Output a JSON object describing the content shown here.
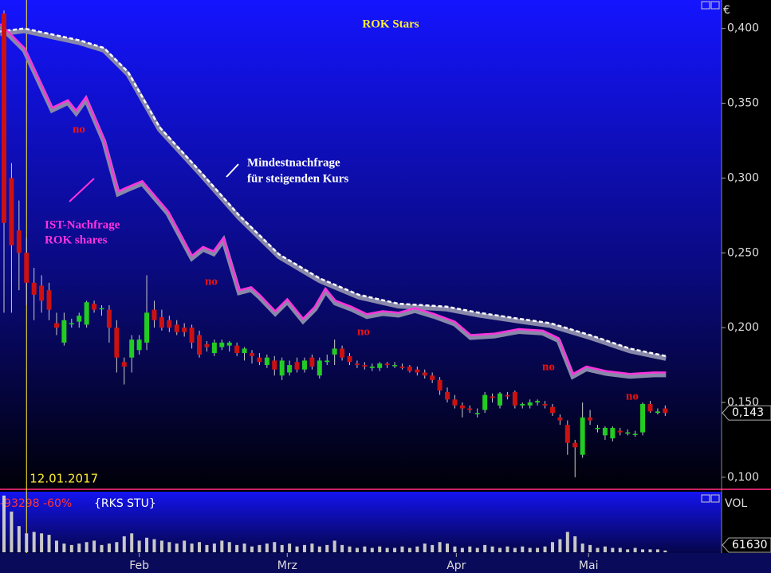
{
  "chart_data": [
    {
      "type": "candlestick",
      "title": "ROK Stars",
      "currency": "€",
      "xlim": [
        -0.53,
        95.5
      ],
      "ylim": [
        0.093,
        0.419
      ],
      "yticks": [
        {
          "value": 0.1,
          "label": "0,100"
        },
        {
          "value": 0.15,
          "label": "0,150"
        },
        {
          "value": 0.2,
          "label": "0,200"
        },
        {
          "value": 0.25,
          "label": "0,250"
        },
        {
          "value": 0.3,
          "label": "0,300"
        },
        {
          "value": 0.35,
          "label": "0,350"
        },
        {
          "value": 0.4,
          "label": "0,400"
        }
      ],
      "up_color": "#22cc22",
      "down_color": "#cc1111",
      "x": [
        0,
        1,
        2,
        3,
        4,
        5,
        6,
        7,
        8,
        9,
        10,
        11,
        12,
        13,
        14,
        15,
        16,
        17,
        18,
        19,
        20,
        21,
        22,
        23,
        24,
        25,
        26,
        27,
        28,
        29,
        30,
        31,
        32,
        33,
        34,
        35,
        36,
        37,
        38,
        39,
        40,
        41,
        42,
        43,
        44,
        45,
        46,
        47,
        48,
        49,
        50,
        51,
        52,
        53,
        54,
        55,
        56,
        57,
        58,
        59,
        60,
        61,
        62,
        63,
        64,
        65,
        66,
        67,
        68,
        69,
        70,
        71,
        72,
        73,
        74,
        75,
        76,
        77,
        78,
        79,
        80,
        81,
        82,
        83,
        84,
        85,
        86,
        87,
        88
      ],
      "open": [
        0.41,
        0.3,
        0.265,
        0.25,
        0.23,
        0.228,
        0.225,
        0.203,
        0.19,
        0.203,
        0.204,
        0.202,
        0.216,
        0.213,
        0.212,
        0.2,
        0.177,
        0.18,
        0.185,
        0.19,
        0.212,
        0.207,
        0.205,
        0.202,
        0.2,
        0.2,
        0.195,
        0.189,
        0.183,
        0.187,
        0.188,
        0.188,
        0.183,
        0.183,
        0.18,
        0.175,
        0.178,
        0.168,
        0.17,
        0.177,
        0.172,
        0.18,
        0.168,
        0.177,
        0.182,
        0.186,
        0.181,
        0.176,
        0.175,
        0.173,
        0.173,
        0.176,
        0.175,
        0.174,
        0.174,
        0.172,
        0.17,
        0.168,
        0.165,
        0.157,
        0.152,
        0.148,
        0.146,
        0.143,
        0.145,
        0.154,
        0.148,
        0.155,
        0.157,
        0.148,
        0.148,
        0.15,
        0.149,
        0.147,
        0.14,
        0.135,
        0.123,
        0.115,
        0.14,
        0.133,
        0.128,
        0.126,
        0.131,
        0.13,
        0.129,
        0.13,
        0.149,
        0.143,
        0.146
      ],
      "high": [
        0.412,
        0.31,
        0.285,
        0.26,
        0.24,
        0.235,
        0.23,
        0.21,
        0.21,
        0.206,
        0.21,
        0.218,
        0.218,
        0.215,
        0.215,
        0.205,
        0.18,
        0.195,
        0.195,
        0.235,
        0.218,
        0.212,
        0.208,
        0.205,
        0.203,
        0.202,
        0.198,
        0.191,
        0.192,
        0.192,
        0.191,
        0.19,
        0.187,
        0.185,
        0.183,
        0.182,
        0.181,
        0.18,
        0.178,
        0.18,
        0.18,
        0.182,
        0.18,
        0.182,
        0.192,
        0.188,
        0.183,
        0.178,
        0.177,
        0.176,
        0.177,
        0.177,
        0.177,
        0.176,
        0.175,
        0.174,
        0.172,
        0.17,
        0.167,
        0.16,
        0.155,
        0.15,
        0.148,
        0.146,
        0.157,
        0.156,
        0.157,
        0.157,
        0.158,
        0.15,
        0.152,
        0.152,
        0.151,
        0.149,
        0.142,
        0.138,
        0.125,
        0.15,
        0.145,
        0.135,
        0.134,
        0.134,
        0.133,
        0.132,
        0.131,
        0.15,
        0.151,
        0.146,
        0.148
      ],
      "low": [
        0.21,
        0.21,
        0.225,
        0.215,
        0.205,
        0.21,
        0.205,
        0.195,
        0.188,
        0.2,
        0.2,
        0.2,
        0.21,
        0.208,
        0.19,
        0.17,
        0.162,
        0.17,
        0.182,
        0.185,
        0.2,
        0.198,
        0.197,
        0.195,
        0.194,
        0.186,
        0.18,
        0.184,
        0.181,
        0.185,
        0.184,
        0.181,
        0.178,
        0.176,
        0.175,
        0.173,
        0.168,
        0.165,
        0.168,
        0.17,
        0.17,
        0.172,
        0.166,
        0.175,
        0.175,
        0.178,
        0.175,
        0.173,
        0.172,
        0.171,
        0.171,
        0.173,
        0.173,
        0.172,
        0.17,
        0.168,
        0.166,
        0.163,
        0.155,
        0.15,
        0.146,
        0.14,
        0.143,
        0.14,
        0.143,
        0.15,
        0.146,
        0.152,
        0.146,
        0.146,
        0.146,
        0.148,
        0.146,
        0.141,
        0.135,
        0.115,
        0.1,
        0.113,
        0.135,
        0.13,
        0.125,
        0.124,
        0.128,
        0.128,
        0.127,
        0.128,
        0.143,
        0.142,
        0.141
      ],
      "close": [
        0.27,
        0.255,
        0.25,
        0.23,
        0.222,
        0.218,
        0.212,
        0.2,
        0.205,
        0.203,
        0.208,
        0.217,
        0.212,
        0.213,
        0.2,
        0.18,
        0.174,
        0.192,
        0.192,
        0.21,
        0.205,
        0.2,
        0.2,
        0.197,
        0.197,
        0.19,
        0.182,
        0.187,
        0.19,
        0.19,
        0.19,
        0.183,
        0.186,
        0.181,
        0.177,
        0.18,
        0.172,
        0.178,
        0.175,
        0.172,
        0.178,
        0.174,
        0.178,
        0.178,
        0.186,
        0.18,
        0.177,
        0.175,
        0.174,
        0.174,
        0.176,
        0.175,
        0.175,
        0.173,
        0.171,
        0.17,
        0.168,
        0.165,
        0.158,
        0.152,
        0.148,
        0.146,
        0.145,
        0.143,
        0.155,
        0.153,
        0.156,
        0.154,
        0.148,
        0.149,
        0.15,
        0.151,
        0.148,
        0.143,
        0.138,
        0.123,
        0.12,
        0.14,
        0.138,
        0.133,
        0.133,
        0.133,
        0.13,
        0.13,
        0.129,
        0.149,
        0.144,
        0.144,
        0.143
      ],
      "last_price_label": "0,143",
      "lines": [
        {
          "name": "Mindestnachfrage für steigenden Kurs",
          "color": "#ffffff",
          "style": "dashed",
          "x": [
            -0.5,
            2.7,
            10.1,
            13.3,
            16.5,
            20.7,
            26.0,
            31.3,
            36.6,
            42.0,
            47.2,
            52.5,
            58.9,
            63.2,
            68.5,
            72.7,
            78.0,
            83.3,
            88.1
          ],
          "values": [
            0.398,
            0.4,
            0.392,
            0.387,
            0.371,
            0.334,
            0.305,
            0.275,
            0.249,
            0.233,
            0.222,
            0.216,
            0.214,
            0.21,
            0.206,
            0.203,
            0.195,
            0.186,
            0.181
          ]
        },
        {
          "name": "IST-Nachfrage ROK shares",
          "color": "#ff33dd",
          "style": "solid",
          "x": [
            -0.5,
            2.7,
            6.4,
            8.5,
            9.6,
            10.9,
            13.3,
            15.2,
            16.5,
            18.4,
            21.8,
            25.0,
            26.5,
            27.9,
            29.2,
            31.3,
            32.9,
            34.0,
            36.1,
            37.7,
            39.8,
            41.4,
            42.8,
            44.1,
            46.2,
            48.3,
            50.4,
            52.5,
            54.7,
            57.3,
            60.0,
            62.1,
            65.3,
            68.5,
            71.7,
            73.8,
            75.7,
            77.5,
            80.1,
            83.3,
            86.5,
            88.1
          ],
          "values": [
            0.403,
            0.387,
            0.347,
            0.352,
            0.345,
            0.354,
            0.326,
            0.291,
            0.294,
            0.298,
            0.278,
            0.248,
            0.254,
            0.251,
            0.26,
            0.225,
            0.227,
            0.222,
            0.211,
            0.219,
            0.206,
            0.214,
            0.226,
            0.218,
            0.214,
            0.209,
            0.211,
            0.21,
            0.213,
            0.209,
            0.204,
            0.195,
            0.196,
            0.199,
            0.198,
            0.193,
            0.169,
            0.174,
            0.171,
            0.169,
            0.17,
            0.17
          ]
        }
      ],
      "marker_line": {
        "x": 3,
        "label": "12.01.2017"
      },
      "annotations": [
        {
          "text": "Mindestnachfrage",
          "color": "#ffffff"
        },
        {
          "text": "für steigenden Kurs",
          "color": "#ffffff"
        },
        {
          "text": "IST-Nachfrage",
          "color": "#ff33dd"
        },
        {
          "text": "ROK shares",
          "color": "#ff33dd"
        },
        {
          "text": "no",
          "color": "#ee1111"
        },
        {
          "text": "no",
          "color": "#ee1111"
        },
        {
          "text": "no",
          "color": "#ee1111"
        },
        {
          "text": "no",
          "color": "#ee1111"
        },
        {
          "text": "no",
          "color": "#ee1111"
        }
      ]
    },
    {
      "type": "bar",
      "title": "VOL",
      "subtitle": "-93298 -60%",
      "symbol": "{RKS STU}",
      "color": "#c8c8c8",
      "xlim": [
        -0.53,
        95.5
      ],
      "ylim": [
        0,
        2000000
      ],
      "xticks": [
        {
          "value": 18.0,
          "label": "Feb"
        },
        {
          "value": 37.7,
          "label": "Mrz"
        },
        {
          "value": 60.2,
          "label": "Apr"
        },
        {
          "value": 77.8,
          "label": "Mai"
        }
      ],
      "values": [
        1950000,
        1400000,
        900000,
        650000,
        700000,
        650000,
        600000,
        400000,
        300000,
        250000,
        300000,
        350000,
        400000,
        250000,
        300000,
        350000,
        550000,
        650000,
        400000,
        500000,
        450000,
        400000,
        350000,
        300000,
        400000,
        300000,
        350000,
        250000,
        300000,
        400000,
        350000,
        250000,
        300000,
        200000,
        250000,
        300000,
        350000,
        250000,
        300000,
        200000,
        250000,
        300000,
        200000,
        250000,
        400000,
        250000,
        200000,
        150000,
        200000,
        150000,
        200000,
        150000,
        150000,
        200000,
        150000,
        200000,
        300000,
        250000,
        350000,
        300000,
        200000,
        150000,
        200000,
        150000,
        250000,
        200000,
        150000,
        200000,
        150000,
        200000,
        150000,
        150000,
        200000,
        350000,
        450000,
        700000,
        550000,
        300000,
        250000,
        150000,
        200000,
        150000,
        150000,
        100000,
        150000,
        100000,
        100000,
        100000,
        61630
      ]
    }
  ]
}
